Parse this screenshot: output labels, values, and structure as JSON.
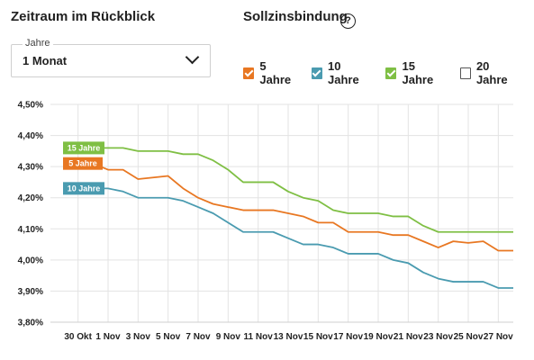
{
  "header": {
    "period_title": "Zeitraum im Rückblick",
    "lock_title": "Sollzinsbindung",
    "help_glyph": "?"
  },
  "period_select": {
    "label": "Jahre",
    "value": "1 Monat"
  },
  "legend": [
    {
      "label": "5 Jahre",
      "color": "#e87722",
      "checked": true
    },
    {
      "label": "10 Jahre",
      "color": "#4a9bb0",
      "checked": true
    },
    {
      "label": "15 Jahre",
      "color": "#7fbf44",
      "checked": true
    },
    {
      "label": "20 Jahre",
      "color": "#555555",
      "checked": false
    }
  ],
  "chart_data": {
    "type": "line",
    "x": [
      "29 Okt",
      "30 Okt",
      "31 Okt",
      "1 Nov",
      "2 Nov",
      "3 Nov",
      "4 Nov",
      "5 Nov",
      "6 Nov",
      "7 Nov",
      "8 Nov",
      "9 Nov",
      "10 Nov",
      "11 Nov",
      "12 Nov",
      "13 Nov",
      "14 Nov",
      "15 Nov",
      "16 Nov",
      "17 Nov",
      "18 Nov",
      "19 Nov",
      "20 Nov",
      "21 Nov",
      "22 Nov",
      "23 Nov",
      "24 Nov",
      "25 Nov",
      "26 Nov",
      "27 Nov",
      "28 Nov"
    ],
    "x_tick_labels": [
      "30 Okt",
      "1 Nov",
      "3 Nov",
      "5 Nov",
      "7 Nov",
      "9 Nov",
      "11 Nov",
      "13 Nov",
      "15 Nov",
      "17 Nov",
      "19 Nov",
      "21 Nov",
      "23 Nov",
      "25 Nov",
      "27 Nov"
    ],
    "y_tick_labels": [
      "3,80%",
      "3,90%",
      "4,00%",
      "4,10%",
      "4,20%",
      "4,30%",
      "4,40%",
      "4,50%"
    ],
    "ylim": [
      3.8,
      4.5
    ],
    "grid": true,
    "series": [
      {
        "name": "15 Jahre",
        "color": "#7fbf44",
        "values": [
          4.36,
          4.36,
          4.36,
          4.36,
          4.36,
          4.35,
          4.35,
          4.35,
          4.34,
          4.34,
          4.32,
          4.29,
          4.25,
          4.25,
          4.25,
          4.22,
          4.2,
          4.19,
          4.16,
          4.15,
          4.15,
          4.15,
          4.14,
          4.14,
          4.11,
          4.09,
          4.09,
          4.09,
          4.09,
          4.09,
          4.09
        ]
      },
      {
        "name": "5 Jahre",
        "color": "#e87722",
        "values": [
          4.31,
          4.31,
          4.31,
          4.29,
          4.29,
          4.26,
          4.265,
          4.27,
          4.23,
          4.2,
          4.18,
          4.17,
          4.16,
          4.16,
          4.16,
          4.15,
          4.14,
          4.12,
          4.12,
          4.09,
          4.09,
          4.09,
          4.08,
          4.08,
          4.06,
          4.04,
          4.06,
          4.055,
          4.06,
          4.03,
          4.03
        ]
      },
      {
        "name": "10 Jahre",
        "color": "#4a9bb0",
        "values": [
          4.23,
          4.23,
          4.23,
          4.23,
          4.22,
          4.2,
          4.2,
          4.2,
          4.19,
          4.17,
          4.15,
          4.12,
          4.09,
          4.09,
          4.09,
          4.07,
          4.05,
          4.05,
          4.04,
          4.02,
          4.02,
          4.02,
          4.0,
          3.99,
          3.96,
          3.94,
          3.93,
          3.93,
          3.93,
          3.91,
          3.91
        ]
      }
    ]
  }
}
